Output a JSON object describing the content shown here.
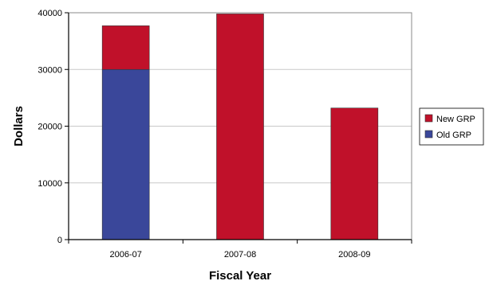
{
  "chart_data": {
    "type": "bar",
    "stacked": true,
    "categories": [
      "2006-07",
      "2007-08",
      "2008-09"
    ],
    "series": [
      {
        "name": "Old GRP",
        "values": [
          30000,
          0,
          0
        ],
        "color": "#3a479a"
      },
      {
        "name": "New GRP",
        "values": [
          7700,
          39800,
          23200
        ],
        "color": "#c0112a"
      }
    ],
    "xlabel": "Fiscal Year",
    "ylabel": "Dollars",
    "ylim": [
      0,
      40000
    ],
    "yticks": [
      0,
      10000,
      20000,
      30000,
      40000
    ],
    "ytick_labels": [
      "0",
      "10000",
      "20000",
      "30000",
      "40000"
    ],
    "grid": true,
    "legend_placement": "right",
    "legend_order": [
      "New GRP",
      "Old GRP"
    ]
  }
}
